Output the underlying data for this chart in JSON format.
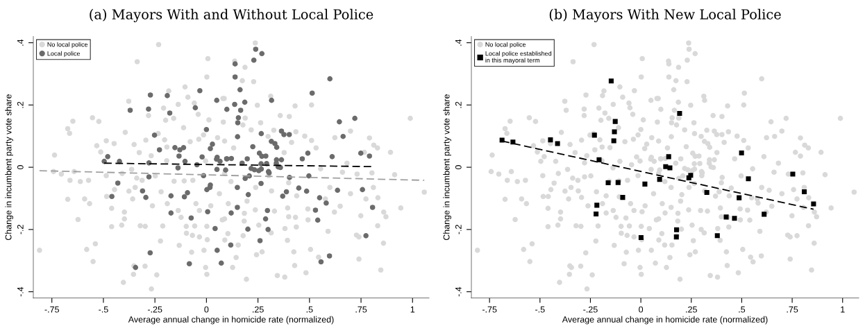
{
  "chart_data": [
    {
      "type": "scatter",
      "title": "(a) Mayors With and Without Local Police",
      "xlabel": "Average annual change in homicide rate (normalized)",
      "ylabel": "Change in incumbent party vote share",
      "xlim": [
        -0.84,
        1.08
      ],
      "ylim": [
        -0.42,
        0.42
      ],
      "xticks": [
        {
          "value": -0.75,
          "label": "-.75"
        },
        {
          "value": -0.5,
          "label": "-.5"
        },
        {
          "value": -0.25,
          "label": "-.25"
        },
        0,
        {
          "value": 0.25,
          "label": ".25"
        },
        {
          "value": 0.5,
          "label": ".5"
        },
        {
          "value": 0.75,
          "label": ".75"
        },
        1
      ],
      "yticks": [
        {
          "value": -0.4,
          "label": "-.4"
        },
        {
          "value": -0.2,
          "label": "-.2"
        },
        0,
        {
          "value": 0.2,
          "label": ".2"
        },
        {
          "value": 0.4,
          "label": ".4"
        }
      ],
      "grid": false,
      "legend": "top left",
      "series": [
        {
          "name": "No local police",
          "marker": "circle",
          "color": "#d9d9d9",
          "x": [
            -0.232,
            0.007,
            -0.336,
            0.002,
            -0.104,
            -0.183,
            -0.09,
            0.086,
            -0.377,
            -0.137,
            -0.059,
            -0.208,
            -0.04,
            -0.281,
            0.012,
            -0.553,
            -0.648,
            -0.522,
            -0.673,
            -0.664,
            -0.394,
            -0.234,
            -0.198,
            -0.159,
            -0.111,
            -0.014,
            -0.203,
            -0.294,
            -0.486,
            -0.448,
            -0.351,
            -0.532,
            -0.192,
            -0.079,
            -0.037,
            0.054,
            -0.326,
            -0.513,
            -0.737,
            -0.268,
            -0.193,
            -0.004,
            -0.742,
            -0.704,
            -0.642,
            -0.81,
            -0.662,
            -0.612,
            -0.572,
            -0.363,
            -0.486,
            -0.409,
            -0.338,
            -0.312,
            -0.248,
            -0.157,
            -0.108,
            -0.066,
            -0.673,
            -0.591,
            -0.567,
            -0.376,
            -0.358,
            -0.484,
            -0.446,
            -0.346,
            -0.22,
            -0.262,
            -0.19,
            -0.137,
            -0.051,
            -0.034,
            -0.623,
            -0.46,
            -0.398,
            -0.398,
            -0.46,
            -0.411,
            -0.321,
            -0.297,
            -0.212,
            -0.123,
            -0.098,
            -0.057,
            0.002,
            -0.223,
            -0.097,
            -0.068,
            -0.034,
            0.004,
            -0.132,
            -0.539,
            -0.581,
            -0.072,
            -0.012,
            -0.55,
            -0.352,
            -0.298,
            -0.354,
            -0.241,
            0.002,
            -0.004,
            -0.403,
            -0.267,
            0.063,
            0.088,
            0.077,
            0.104,
            0.021,
            0.237,
            0.137,
            0.187,
            0.229,
            0.174,
            0.312,
            0.08,
            0.247,
            0.43,
            0.51,
            0.358,
            0.402,
            0.188,
            0.082,
            0.263,
            0.177,
            0.217,
            0.327,
            0.434,
            0.477,
            0.699,
            0.791,
            0.299,
            0.51,
            0.623,
            0.812,
            0.83,
            0.893,
            0.989,
            0.766,
            0.413,
            0.532,
            0.132,
            0.088,
            0.377,
            0.682,
            0.554,
            0.66,
            0.731,
            0.803,
            0.913,
            1.057,
            0.81,
            0.699,
            0.774,
            0.832,
            0.943,
            0.86,
            0.871,
            0.749,
            0.831,
            0.728,
            0.74,
            0.859,
            0.74,
            0.846,
            0.577,
            0.621,
            0.649,
            0.492,
            0.432,
            0.399,
            0.493,
            0.59,
            0.436,
            0.314,
            0.381,
            0.393,
            0.505,
            0.424,
            0.544,
            0.428,
            0.483,
            0.344,
            0.38,
            0.194,
            0.27,
            0.243,
            0.144,
            0.127,
            0.154,
            0.089,
            0.178,
            0.254,
            0.183,
            0.088,
            0.184,
            0.237,
            0.33,
            0.394,
            0.106,
            0.197,
            0.316,
            0.399,
            0.302,
            0.119,
            0.239,
            0.438,
            0.599
          ],
          "values": [
            0.394,
            0.349,
            0.339,
            0.29,
            0.258,
            0.245,
            0.225,
            0.221,
            0.212,
            0.202,
            0.206,
            0.19,
            0.17,
            0.166,
            0.152,
            0.159,
            0.148,
            0.147,
            0.124,
            0.109,
            0.112,
            0.108,
            0.151,
            0.157,
            0.127,
            0.104,
            0.088,
            0.087,
            0.085,
            0.076,
            0.073,
            0.069,
            0.065,
            0.082,
            0.09,
            0.095,
            0.047,
            0.049,
            0.039,
            0.037,
            0.021,
            0.02,
            -0.014,
            -0.022,
            -0.014,
            -0.267,
            -0.042,
            -0.046,
            -0.042,
            -0.007,
            -0.027,
            -0.02,
            -0.035,
            -0.042,
            -0.028,
            -0.045,
            -0.044,
            -0.042,
            -0.103,
            -0.102,
            -0.117,
            -0.077,
            -0.102,
            -0.094,
            -0.072,
            -0.065,
            -0.079,
            -0.124,
            -0.117,
            -0.139,
            -0.117,
            -0.139,
            -0.168,
            -0.132,
            -0.144,
            -0.166,
            -0.191,
            -0.186,
            -0.188,
            -0.19,
            -0.189,
            -0.161,
            -0.19,
            -0.189,
            -0.19,
            -0.237,
            -0.212,
            -0.219,
            -0.224,
            -0.233,
            -0.251,
            -0.246,
            -0.264,
            -0.273,
            -0.267,
            -0.303,
            -0.317,
            -0.318,
            -0.344,
            -0.346,
            -0.344,
            -0.322,
            -0.37,
            -0.391,
            -0.085,
            -0.02,
            -0.169,
            -0.213,
            -0.124,
            0.399,
            0.341,
            0.321,
            0.275,
            0.278,
            0.228,
            0.221,
            0.199,
            0.197,
            0.2,
            0.166,
            0.163,
            0.158,
            0.145,
            0.143,
            0.136,
            0.12,
            0.119,
            0.114,
            0.1,
            0.116,
            0.094,
            0.099,
            0.086,
            0.095,
            0.071,
            0.062,
            0.048,
            0.157,
            0.048,
            0.08,
            0.062,
            0.062,
            0.084,
            0.047,
            0.013,
            -0.005,
            -0.016,
            -0.022,
            -0.018,
            -0.024,
            -0.08,
            -0.065,
            -0.085,
            -0.102,
            -0.098,
            -0.131,
            -0.144,
            -0.159,
            -0.156,
            -0.188,
            -0.218,
            -0.224,
            -0.244,
            -0.295,
            -0.33,
            -0.102,
            -0.144,
            -0.125,
            -0.134,
            -0.161,
            -0.159,
            -0.169,
            -0.206,
            -0.192,
            -0.211,
            -0.197,
            -0.235,
            -0.264,
            -0.272,
            -0.289,
            -0.316,
            -0.339,
            -0.348,
            -0.353,
            -0.36,
            -0.272,
            -0.281,
            -0.29,
            -0.322,
            -0.25,
            -0.234,
            -0.22,
            -0.186,
            -0.173,
            -0.166,
            -0.148,
            -0.137,
            -0.141,
            -0.131,
            -0.117,
            -0.109,
            -0.076,
            -0.05,
            -0.027,
            -0.046,
            -0.065,
            -0.092,
            -0.065
          ]
        },
        {
          "name": "Local police",
          "marker": "circle",
          "color": "#6b6b6b",
          "x": [
            -0.032,
            -0.272,
            -0.19,
            0.05,
            -0.37,
            -0.281,
            -0.054,
            0.099,
            -0.178,
            0,
            -0.252,
            0.029,
            0.019,
            -0.228,
            -0.153,
            -0.129,
            -0.111,
            -0.133,
            -0.479,
            -0.496,
            -0.422,
            -0.279,
            -0.104,
            -0.021,
            0.052,
            0.049,
            0.066,
            0.099,
            -0.138,
            -0.046,
            0.051,
            0.093,
            -0.014,
            -0.279,
            -0.43,
            -0.31,
            0.019,
            0.017,
            0.002,
            -0.459,
            -0.294,
            -0.172,
            -0.092,
            -0.107,
            -0.172,
            0.006,
            -0.074,
            0.042,
            0.052,
            -0.273,
            -0.083,
            0.072,
            -0.344,
            0.239,
            0.269,
            0.23,
            0.139,
            0.599,
            0.139,
            0.163,
            0.513,
            0.316,
            0.186,
            0.137,
            0.166,
            0.155,
            0.72,
            0.152,
            0.645,
            0.364,
            0.376,
            0.402,
            0.151,
            0.266,
            0.663,
            0.315,
            0.332,
            0.341,
            0.225,
            0.492,
            0.257,
            0.269,
            0.288,
            0.61,
            0.749,
            0.791,
            0.465,
            0.364,
            0.34,
            0.121,
            0.098,
            0.198,
            0.173,
            0.265,
            0.292,
            0.339,
            0.348,
            0.359,
            0.217,
            0.233,
            0.254,
            0.266,
            0.301,
            0.304,
            0.208,
            0.188,
            0.497,
            0.403,
            0.15,
            0.265,
            0.448,
            0.486,
            0.636,
            0.757,
            0.388,
            0.37,
            0.203,
            0.549,
            0.581,
            0.806,
            0.15,
            0.296,
            0.529,
            0.12,
            0.287,
            0.54,
            0.201,
            0.299,
            0.774,
            0.26,
            0.118,
            0.597,
            0.556
          ],
          "values": [
            0.246,
            0.232,
            0.23,
            0.215,
            0.183,
            0.187,
            0.191,
            0.186,
            0.174,
            0.121,
            0.103,
            0.074,
            0.06,
            0.056,
            0.063,
            0.056,
            0.063,
            0.036,
            0.034,
            0.019,
            0.019,
            0.014,
            0.019,
            0.033,
            0.032,
            0.026,
            0.019,
            0.027,
            -0.002,
            0.008,
            -0.007,
            -0.009,
            -0.027,
            -0.031,
            -0.051,
            -0.076,
            -0.057,
            -0.065,
            -0.072,
            -0.094,
            -0.097,
            -0.092,
            -0.082,
            -0.095,
            -0.147,
            -0.143,
            -0.163,
            -0.197,
            -0.267,
            -0.275,
            -0.31,
            -0.308,
            -0.322,
            0.379,
            0.365,
            0.344,
            0.332,
            0.284,
            0.29,
            0.249,
            0.238,
            0.215,
            0.209,
            0.202,
            0.183,
            0.159,
            0.157,
            0.143,
            0.146,
            0.116,
            0.105,
            0.105,
            0.098,
            0.108,
            0.099,
            0.083,
            0.076,
            0.064,
            0.066,
            0.045,
            0.045,
            0.035,
            0.036,
            0.034,
            0.045,
            0.036,
            0.027,
            0.024,
            0.024,
            0.028,
            0.027,
            0.027,
            0.013,
            0.011,
            0.012,
            0.013,
            0.001,
            -0.001,
            -0.004,
            -0.008,
            -0.011,
            -0.006,
            -0.014,
            -0.018,
            -0.028,
            -0.036,
            -0.028,
            -0.033,
            -0.065,
            -0.052,
            -0.067,
            -0.077,
            -0.074,
            -0.072,
            -0.079,
            -0.093,
            -0.088,
            -0.098,
            -0.115,
            -0.129,
            -0.129,
            -0.139,
            -0.138,
            -0.147,
            -0.166,
            -0.17,
            -0.199,
            -0.2,
            -0.22,
            -0.236,
            -0.25,
            -0.285,
            -0.304
          ]
        },
        {
          "type": "line",
          "line_style": "dashed",
          "color": "#a0a0a0",
          "x": [
            -0.81,
            1.057
          ],
          "values": [
            -0.011,
            -0.042
          ]
        },
        {
          "type": "line",
          "line_style": "dashed",
          "color": "#000000",
          "x": [
            -0.496,
            0.808
          ],
          "values": [
            0.013,
            0.002
          ]
        }
      ]
    },
    {
      "type": "scatter",
      "title": "(b) Mayors With New Local Police",
      "xlabel": "Average annual change in homicide rate (normalized)",
      "ylabel": "Change in incumbent party vote share",
      "xlim": [
        -0.84,
        1.08
      ],
      "ylim": [
        -0.42,
        0.42
      ],
      "xticks": [
        {
          "value": -0.75,
          "label": "-.75"
        },
        {
          "value": -0.5,
          "label": "-.5"
        },
        {
          "value": -0.25,
          "label": "-.25"
        },
        0,
        {
          "value": 0.25,
          "label": ".25"
        },
        {
          "value": 0.5,
          "label": ".5"
        },
        {
          "value": 0.75,
          "label": ".75"
        },
        1
      ],
      "yticks": [
        {
          "value": -0.4,
          "label": "-.4"
        },
        {
          "value": -0.2,
          "label": "-.2"
        },
        0,
        {
          "value": 0.2,
          "label": ".2"
        },
        {
          "value": 0.4,
          "label": ".4"
        }
      ],
      "grid": false,
      "legend": "top left",
      "series": [
        {
          "name": "No local police",
          "marker": "circle",
          "color": "#d9d9d9",
          "x": [
            -0.232,
            0.007,
            -0.336,
            0.002,
            -0.104,
            -0.183,
            -0.09,
            0.086,
            -0.377,
            -0.137,
            -0.059,
            -0.208,
            -0.04,
            -0.281,
            0.012,
            -0.553,
            -0.648,
            -0.522,
            -0.673,
            -0.664,
            -0.394,
            -0.234,
            -0.198,
            -0.159,
            -0.111,
            -0.014,
            -0.203,
            -0.294,
            -0.486,
            -0.448,
            -0.351,
            -0.532,
            -0.192,
            -0.079,
            -0.037,
            0.054,
            -0.326,
            -0.513,
            -0.737,
            -0.268,
            -0.193,
            -0.004,
            -0.742,
            -0.704,
            -0.642,
            -0.81,
            -0.662,
            -0.612,
            -0.572,
            -0.363,
            -0.486,
            -0.409,
            -0.338,
            -0.312,
            -0.248,
            -0.157,
            -0.108,
            -0.066,
            -0.673,
            -0.591,
            -0.567,
            -0.376,
            -0.358,
            -0.484,
            -0.446,
            -0.346,
            -0.22,
            -0.262,
            -0.19,
            -0.137,
            -0.051,
            -0.034,
            -0.623,
            -0.46,
            -0.398,
            -0.398,
            -0.46,
            -0.411,
            -0.321,
            -0.297,
            -0.212,
            -0.123,
            -0.098,
            -0.057,
            0.002,
            -0.223,
            -0.097,
            -0.068,
            -0.034,
            0.004,
            -0.132,
            -0.539,
            -0.581,
            -0.072,
            -0.012,
            -0.55,
            -0.352,
            -0.298,
            -0.354,
            -0.241,
            0.002,
            -0.004,
            -0.403,
            -0.267,
            0.063,
            0.088,
            0.077,
            0.104,
            0.021,
            0.237,
            0.137,
            0.187,
            0.229,
            0.174,
            0.312,
            0.08,
            0.247,
            0.43,
            0.51,
            0.358,
            0.402,
            0.188,
            0.082,
            0.263,
            0.177,
            0.217,
            0.327,
            0.434,
            0.477,
            0.699,
            0.791,
            0.299,
            0.51,
            0.623,
            0.812,
            0.83,
            0.893,
            0.989,
            0.766,
            0.413,
            0.532,
            0.132,
            0.088,
            0.377,
            0.682,
            0.554,
            0.66,
            0.731,
            0.803,
            0.913,
            1.057,
            0.81,
            0.699,
            0.774,
            0.832,
            0.943,
            0.86,
            0.871,
            0.749,
            0.831,
            0.728,
            0.74,
            0.859,
            0.74,
            0.846,
            0.577,
            0.621,
            0.649,
            0.492,
            0.432,
            0.399,
            0.493,
            0.59,
            0.436,
            0.314,
            0.381,
            0.393,
            0.505,
            0.424,
            0.544,
            0.428,
            0.483,
            0.344,
            0.38,
            0.194,
            0.27,
            0.243,
            0.144,
            0.127,
            0.154,
            0.089,
            0.178,
            0.254,
            0.183,
            0.088,
            0.184,
            0.237,
            0.33,
            0.394,
            0.106,
            0.197,
            0.316,
            0.399,
            0.302,
            0.119,
            0.239,
            0.438,
            0.599,
            -0.032,
            -0.272,
            -0.19,
            0.05,
            -0.37,
            -0.281,
            -0.054,
            0.099,
            -0.178,
            0,
            -0.252,
            0.029,
            0.019,
            -0.228,
            -0.153,
            -0.479,
            -0.496,
            -0.422,
            -0.279,
            -0.104,
            -0.021,
            0.052,
            0.049,
            0.066,
            0.099,
            -0.138,
            -0.046,
            0.051,
            0.093,
            -0.014,
            -0.279,
            -0.43,
            -0.31,
            -0.459,
            -0.294,
            -0.172,
            -0.107,
            -0.172,
            0.006,
            -0.074,
            0.042,
            0.052,
            -0.273,
            -0.083,
            0.072,
            -0.344,
            0.239,
            0.269,
            0.23,
            0.139,
            0.599,
            0.139,
            0.163,
            0.513,
            0.316,
            0.186,
            0.166,
            0.155,
            0.72,
            0.152,
            0.645,
            0.364,
            0.376,
            0.402,
            0.151,
            0.266,
            0.663,
            0.315,
            0.332,
            0.341,
            0.225,
            0.257,
            0.269,
            0.288,
            0.61,
            0.791,
            0.465,
            0.364,
            0.34,
            0.121,
            0.098,
            0.198,
            0.173,
            0.265,
            0.292,
            0.339,
            0.348,
            0.359,
            0.217,
            0.233,
            0.254,
            0.266,
            0.301,
            0.304,
            0.208,
            0.188,
            0.497,
            0.403,
            0.15,
            0.265,
            0.448,
            0.636,
            0.757,
            0.388,
            0.37,
            0.203,
            0.549,
            0.581,
            0.806,
            0.15,
            0.296,
            0.529,
            0.12,
            0.54,
            0.201,
            0.299,
            0.774,
            0.26,
            0.118,
            0.597,
            0.556
          ],
          "values": [
            0.394,
            0.349,
            0.339,
            0.29,
            0.258,
            0.245,
            0.225,
            0.221,
            0.212,
            0.202,
            0.206,
            0.19,
            0.17,
            0.166,
            0.152,
            0.159,
            0.148,
            0.147,
            0.124,
            0.109,
            0.112,
            0.108,
            0.151,
            0.157,
            0.127,
            0.104,
            0.088,
            0.087,
            0.085,
            0.076,
            0.073,
            0.069,
            0.065,
            0.082,
            0.09,
            0.095,
            0.047,
            0.049,
            0.039,
            0.037,
            0.021,
            0.02,
            -0.014,
            -0.022,
            -0.014,
            -0.267,
            -0.042,
            -0.046,
            -0.042,
            -0.007,
            -0.027,
            -0.02,
            -0.035,
            -0.042,
            -0.028,
            -0.045,
            -0.044,
            -0.042,
            -0.103,
            -0.102,
            -0.117,
            -0.077,
            -0.102,
            -0.094,
            -0.072,
            -0.065,
            -0.079,
            -0.124,
            -0.117,
            -0.139,
            -0.117,
            -0.139,
            -0.168,
            -0.132,
            -0.144,
            -0.166,
            -0.191,
            -0.186,
            -0.188,
            -0.19,
            -0.189,
            -0.161,
            -0.19,
            -0.189,
            -0.19,
            -0.237,
            -0.212,
            -0.219,
            -0.224,
            -0.233,
            -0.251,
            -0.246,
            -0.264,
            -0.273,
            -0.267,
            -0.303,
            -0.317,
            -0.318,
            -0.344,
            -0.346,
            -0.344,
            -0.322,
            -0.37,
            -0.391,
            -0.085,
            -0.02,
            -0.169,
            -0.213,
            -0.124,
            0.399,
            0.341,
            0.321,
            0.275,
            0.278,
            0.228,
            0.221,
            0.199,
            0.197,
            0.2,
            0.166,
            0.163,
            0.158,
            0.145,
            0.143,
            0.136,
            0.12,
            0.119,
            0.114,
            0.1,
            0.116,
            0.094,
            0.099,
            0.086,
            0.095,
            0.071,
            0.062,
            0.048,
            0.157,
            0.048,
            0.08,
            0.062,
            0.062,
            0.084,
            0.047,
            0.013,
            -0.005,
            -0.016,
            -0.022,
            -0.018,
            -0.024,
            -0.08,
            -0.065,
            -0.085,
            -0.102,
            -0.098,
            -0.131,
            -0.144,
            -0.159,
            -0.156,
            -0.188,
            -0.218,
            -0.224,
            -0.244,
            -0.295,
            -0.33,
            -0.102,
            -0.144,
            -0.125,
            -0.134,
            -0.161,
            -0.159,
            -0.169,
            -0.206,
            -0.192,
            -0.211,
            -0.197,
            -0.235,
            -0.264,
            -0.272,
            -0.289,
            -0.316,
            -0.339,
            -0.348,
            -0.353,
            -0.36,
            -0.272,
            -0.281,
            -0.29,
            -0.322,
            -0.25,
            -0.234,
            -0.22,
            -0.186,
            -0.173,
            -0.166,
            -0.148,
            -0.137,
            -0.141,
            -0.131,
            -0.117,
            -0.109,
            -0.076,
            -0.05,
            -0.027,
            -0.046,
            -0.065,
            -0.092,
            -0.065,
            0.246,
            0.232,
            0.23,
            0.215,
            0.183,
            0.187,
            0.191,
            0.186,
            0.174,
            0.121,
            0.103,
            0.074,
            0.06,
            0.056,
            0.063,
            0.034,
            0.019,
            0.019,
            0.014,
            0.019,
            0.033,
            0.032,
            0.026,
            0.019,
            0.027,
            -0.002,
            0.008,
            -0.007,
            -0.009,
            -0.027,
            -0.031,
            -0.051,
            -0.076,
            -0.094,
            -0.097,
            -0.092,
            -0.095,
            -0.147,
            -0.143,
            -0.163,
            -0.197,
            -0.267,
            -0.275,
            -0.31,
            -0.308,
            -0.322,
            0.379,
            0.365,
            0.344,
            0.332,
            0.284,
            0.29,
            0.249,
            0.238,
            0.215,
            0.209,
            0.183,
            0.159,
            0.157,
            0.143,
            0.146,
            0.116,
            0.105,
            0.105,
            0.098,
            0.108,
            0.099,
            0.083,
            0.076,
            0.064,
            0.066,
            0.045,
            0.035,
            0.036,
            0.034,
            0.036,
            0.027,
            0.024,
            0.024,
            0.028,
            0.027,
            0.027,
            0.013,
            0.011,
            0.012,
            0.013,
            0.001,
            -0.001,
            -0.004,
            -0.008,
            -0.011,
            -0.006,
            -0.014,
            -0.018,
            -0.028,
            -0.036,
            -0.028,
            -0.033,
            -0.065,
            -0.052,
            -0.067,
            -0.074,
            -0.072,
            -0.079,
            -0.093,
            -0.088,
            -0.098,
            -0.115,
            -0.129,
            -0.129,
            -0.139,
            -0.138,
            -0.147,
            -0.17,
            -0.199,
            -0.2,
            -0.22,
            -0.236,
            -0.25,
            -0.285,
            -0.304
          ]
        },
        {
          "name": "Local police established\nin this mayoral term",
          "marker": "square",
          "color": "#000000",
          "x": [
            -0.147,
            -0.127,
            -0.131,
            -0.134,
            -0.23,
            -0.688,
            -0.634,
            -0.448,
            -0.413,
            -0.207,
            -0.162,
            -0.113,
            0.02,
            -0.09,
            -0.218,
            -0.222,
            0.001,
            0.192,
            0.499,
            0.138,
            0.123,
            0.144,
            0.093,
            0.238,
            0.247,
            0.533,
            0.753,
            0.327,
            0.487,
            0.81,
            0.856,
            0.611,
            0.423,
            0.464,
            0.177,
            0.176,
            0.379
          ],
          "values": [
            0.277,
            0.147,
            0.114,
            0.085,
            0.103,
            0.087,
            0.081,
            0.088,
            0.076,
            0.024,
            -0.05,
            -0.049,
            -0.054,
            -0.097,
            -0.122,
            -0.15,
            -0.226,
            0.173,
            0.046,
            0.034,
            0.002,
            -0.002,
            -0.039,
            -0.034,
            -0.026,
            -0.037,
            -0.022,
            -0.081,
            -0.098,
            -0.079,
            -0.118,
            -0.151,
            -0.16,
            -0.164,
            -0.201,
            -0.224,
            -0.22
          ]
        },
        {
          "type": "line",
          "line_style": "dashed",
          "color": "#000000",
          "x": [
            -0.688,
            0.856
          ],
          "values": [
            0.084,
            -0.135
          ]
        }
      ]
    }
  ]
}
